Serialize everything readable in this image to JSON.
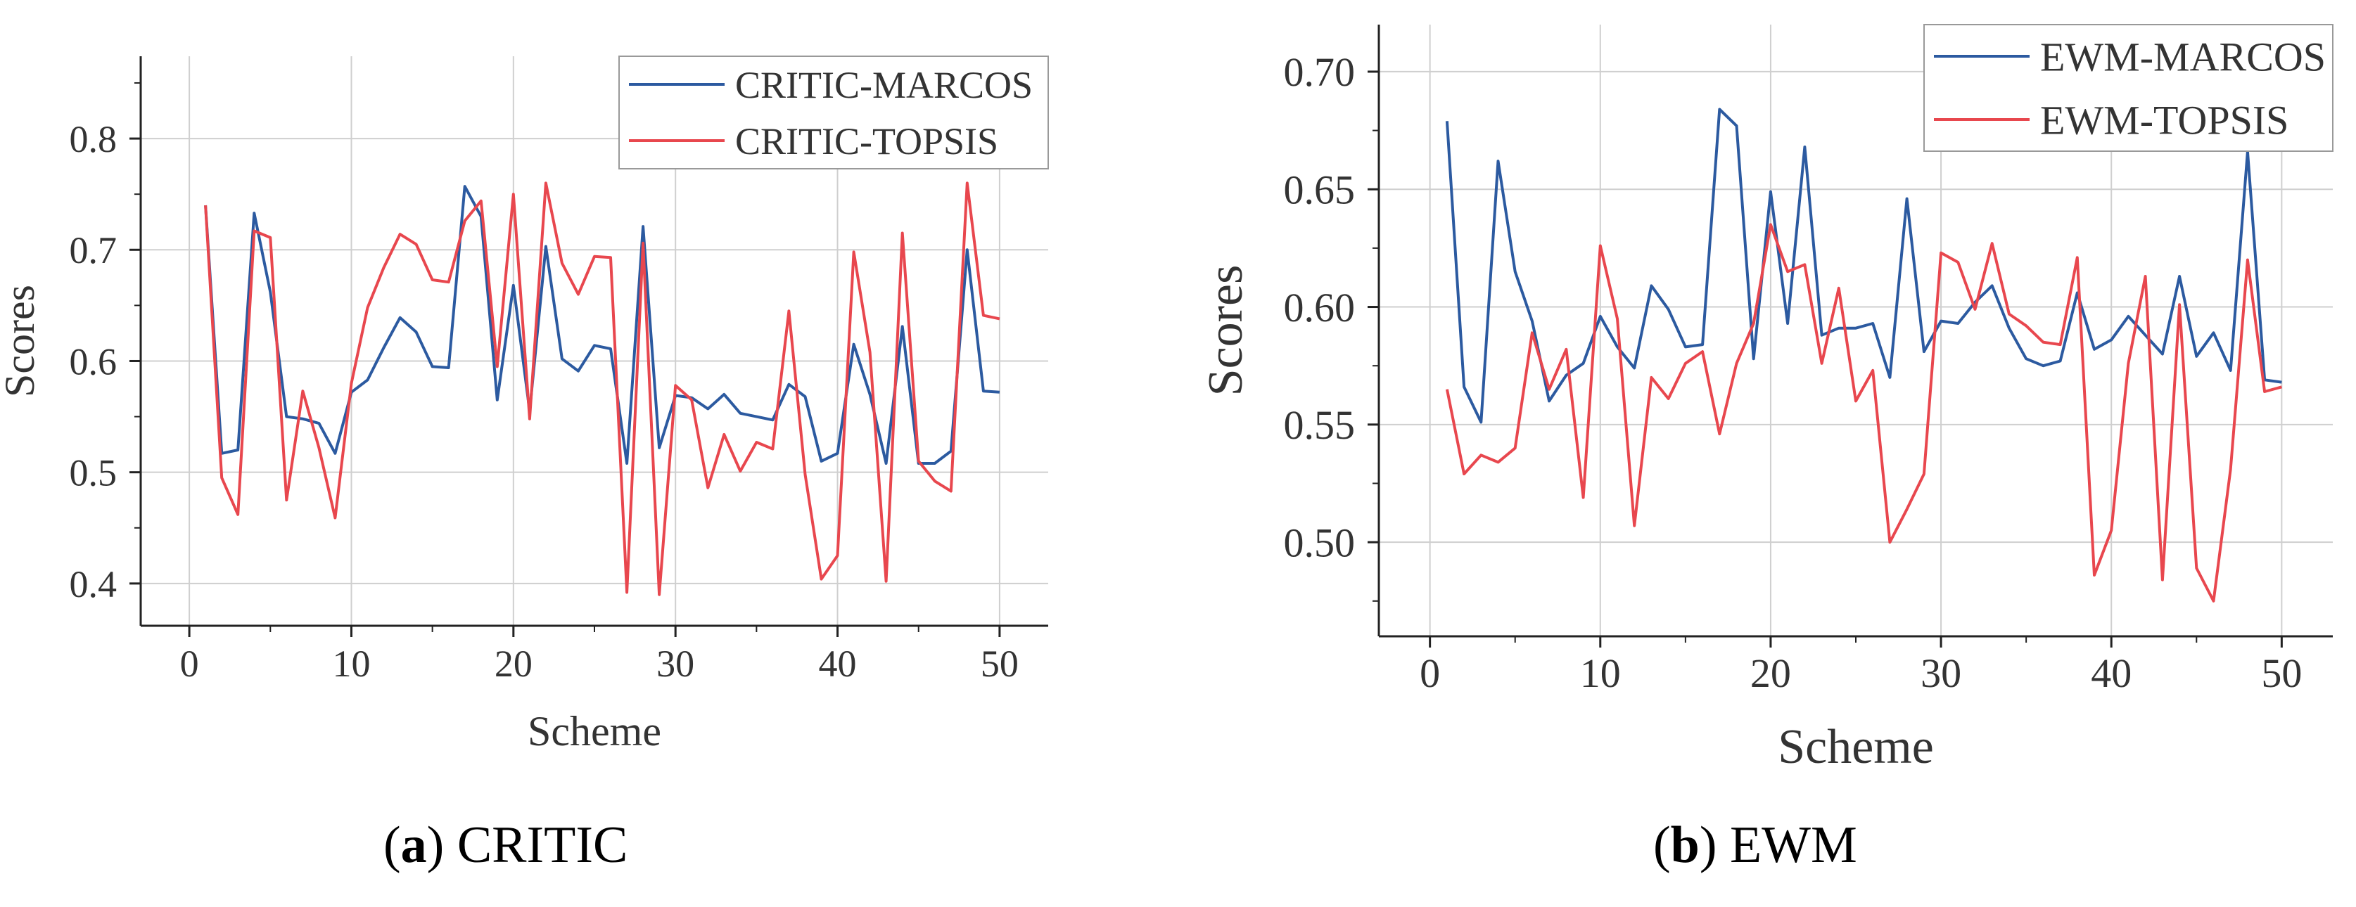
{
  "chart_data": [
    {
      "type": "line",
      "caption": {
        "letter": "a",
        "name": "CRITIC"
      },
      "xlabel": "Scheme",
      "ylabel": "Scores",
      "xlim": [
        -3,
        53
      ],
      "ylim": [
        0.362,
        0.874
      ],
      "xticks": [
        0,
        10,
        20,
        30,
        40,
        50
      ],
      "yticks": [
        0.4,
        0.5,
        0.6,
        0.7,
        0.8
      ],
      "grid": true,
      "legend_position": "top-right",
      "x": [
        1,
        2,
        3,
        4,
        5,
        6,
        7,
        8,
        9,
        10,
        11,
        12,
        13,
        14,
        15,
        16,
        17,
        18,
        19,
        20,
        21,
        22,
        23,
        24,
        25,
        26,
        27,
        28,
        29,
        30,
        31,
        32,
        33,
        34,
        35,
        36,
        37,
        38,
        39,
        40,
        41,
        42,
        43,
        44,
        45,
        46,
        47,
        48,
        49,
        50
      ],
      "series": [
        {
          "name": "CRITIC-MARCOS",
          "color": "#2c5aa0",
          "values": [
            0.74,
            0.517,
            0.52,
            0.733,
            0.662,
            0.55,
            0.548,
            0.544,
            0.517,
            0.572,
            0.583,
            0.612,
            0.639,
            0.626,
            0.595,
            0.594,
            0.757,
            0.73,
            0.565,
            0.668,
            0.555,
            0.703,
            0.602,
            0.591,
            0.614,
            0.611,
            0.508,
            0.721,
            0.522,
            0.569,
            0.567,
            0.557,
            0.57,
            0.553,
            0.55,
            0.547,
            0.579,
            0.568,
            0.51,
            0.517,
            0.615,
            0.57,
            0.508,
            0.631,
            0.508,
            0.508,
            0.519,
            0.7,
            0.573,
            0.572
          ]
        },
        {
          "name": "CRITIC-TOPSIS",
          "color": "#e8474e",
          "values": [
            0.74,
            0.495,
            0.462,
            0.717,
            0.711,
            0.475,
            0.573,
            0.522,
            0.459,
            0.58,
            0.648,
            0.684,
            0.714,
            0.705,
            0.673,
            0.671,
            0.726,
            0.744,
            0.595,
            0.75,
            0.548,
            0.76,
            0.688,
            0.66,
            0.694,
            0.693,
            0.392,
            0.706,
            0.39,
            0.578,
            0.565,
            0.486,
            0.534,
            0.501,
            0.527,
            0.521,
            0.645,
            0.498,
            0.404,
            0.425,
            0.698,
            0.608,
            0.402,
            0.715,
            0.51,
            0.492,
            0.483,
            0.76,
            0.641,
            0.638
          ]
        }
      ]
    },
    {
      "type": "line",
      "caption": {
        "letter": "b",
        "name": "EWM"
      },
      "xlabel": "Scheme",
      "ylabel": "Scores",
      "xlim": [
        -3,
        53
      ],
      "ylim": [
        0.46,
        0.72
      ],
      "xticks": [
        0,
        10,
        20,
        30,
        40,
        50
      ],
      "yticks": [
        0.5,
        0.55,
        0.6,
        0.65,
        0.7
      ],
      "grid": true,
      "legend_position": "top-right",
      "x": [
        1,
        2,
        3,
        4,
        5,
        6,
        7,
        8,
        9,
        10,
        11,
        12,
        13,
        14,
        15,
        16,
        17,
        18,
        19,
        20,
        21,
        22,
        23,
        24,
        25,
        26,
        27,
        28,
        29,
        30,
        31,
        32,
        33,
        34,
        35,
        36,
        37,
        38,
        39,
        40,
        41,
        42,
        43,
        44,
        45,
        46,
        47,
        48,
        49,
        50
      ],
      "series": [
        {
          "name": "EWM-MARCOS",
          "color": "#2c5aa0",
          "values": [
            0.679,
            0.566,
            0.551,
            0.662,
            0.615,
            0.594,
            0.56,
            0.571,
            0.576,
            0.596,
            0.583,
            0.574,
            0.609,
            0.599,
            0.583,
            0.584,
            0.684,
            0.677,
            0.578,
            0.649,
            0.593,
            0.668,
            0.588,
            0.591,
            0.591,
            0.593,
            0.57,
            0.646,
            0.581,
            0.594,
            0.593,
            0.602,
            0.609,
            0.591,
            0.578,
            0.575,
            0.577,
            0.606,
            0.582,
            0.586,
            0.596,
            0.588,
            0.58,
            0.613,
            0.579,
            0.589,
            0.573,
            0.666,
            0.569,
            0.568
          ]
        },
        {
          "name": "EWM-TOPSIS",
          "color": "#e8474e",
          "values": [
            0.565,
            0.529,
            0.537,
            0.534,
            0.54,
            0.589,
            0.565,
            0.582,
            0.519,
            0.626,
            0.595,
            0.507,
            0.57,
            0.561,
            0.576,
            0.581,
            0.546,
            0.576,
            0.593,
            0.635,
            0.615,
            0.618,
            0.576,
            0.608,
            0.56,
            0.573,
            0.5,
            0.514,
            0.529,
            0.623,
            0.619,
            0.599,
            0.627,
            0.597,
            0.592,
            0.585,
            0.584,
            0.621,
            0.486,
            0.505,
            0.576,
            0.613,
            0.484,
            0.601,
            0.489,
            0.475,
            0.531,
            0.62,
            0.564,
            0.566
          ]
        }
      ]
    }
  ]
}
